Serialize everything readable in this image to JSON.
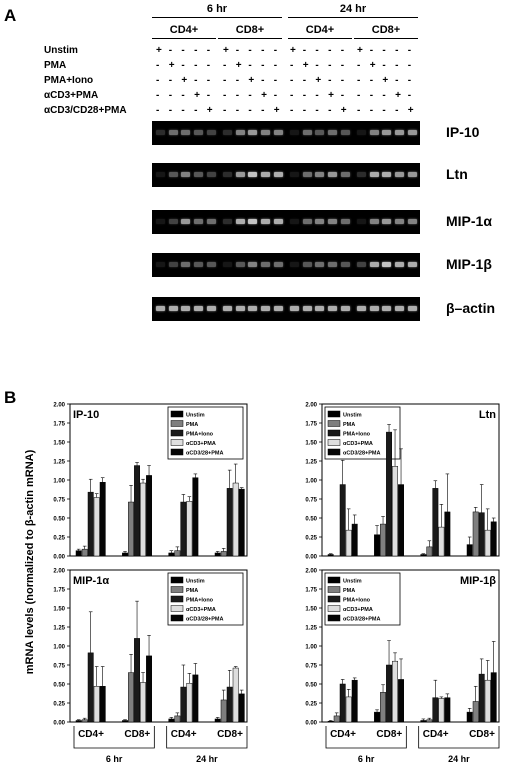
{
  "panel_a": {
    "letter": "A",
    "time_labels": [
      "6 hr",
      "24 hr"
    ],
    "cell_labels": [
      "CD4+",
      "CD8+",
      "CD4+",
      "CD8+"
    ],
    "row_labels": [
      "Unstim",
      "PMA",
      "PMA+Iono",
      "αCD3+PMA",
      "αCD3/CD28+PMA"
    ],
    "gels": [
      {
        "gene": "IP-10",
        "levels": [
          0.2,
          0.5,
          0.5,
          0.4,
          0.3,
          0.2,
          0.6,
          0.7,
          0.6,
          0.6,
          0.1,
          0.5,
          0.4,
          0.5,
          0.4,
          0.1,
          0.6,
          0.7,
          0.7,
          0.7
        ]
      },
      {
        "gene": "Ltn",
        "levels": [
          0.1,
          0.4,
          0.6,
          0.4,
          0.3,
          0.2,
          0.7,
          0.9,
          0.8,
          0.8,
          0.1,
          0.5,
          0.6,
          0.7,
          0.5,
          0.2,
          0.8,
          0.8,
          0.7,
          0.7
        ]
      },
      {
        "gene": "MIP-1α",
        "levels": [
          0.1,
          0.3,
          0.7,
          0.5,
          0.5,
          0.2,
          0.8,
          0.9,
          0.8,
          0.8,
          0.1,
          0.5,
          0.6,
          0.6,
          0.5,
          0.1,
          0.6,
          0.7,
          0.6,
          0.6
        ]
      },
      {
        "gene": "MIP-1β",
        "levels": [
          0.1,
          0.3,
          0.5,
          0.4,
          0.4,
          0.1,
          0.4,
          0.6,
          0.5,
          0.5,
          0.1,
          0.4,
          0.5,
          0.5,
          0.4,
          0.3,
          0.8,
          0.9,
          0.8,
          0.8
        ]
      },
      {
        "gene": "β–actin",
        "levels": [
          0.8,
          0.8,
          0.8,
          0.8,
          0.8,
          0.8,
          0.8,
          0.8,
          0.8,
          0.8,
          0.8,
          0.8,
          0.8,
          0.8,
          0.8,
          0.8,
          0.8,
          0.8,
          0.8,
          0.8
        ]
      }
    ]
  },
  "panel_b": {
    "letter": "B",
    "ylabel": "mRNA levels (normalized to β-actin mRNA)",
    "group_labels": [
      "CD4+",
      "CD8+",
      "CD4+",
      "CD8+"
    ],
    "time_labels": [
      "6 hr",
      "24 hr"
    ]
  },
  "chart_data": [
    {
      "type": "bar",
      "title": "IP-10",
      "categories": [
        "CD4+ 6 hr",
        "CD8+ 6 hr",
        "CD4+ 24 hr",
        "CD8+ 24 hr"
      ],
      "ylim": [
        0,
        2.0
      ],
      "yticks": [
        "0.00",
        "0.25",
        "0.50",
        "0.75",
        "1.00",
        "1.25",
        "1.50",
        "1.75",
        "2.00"
      ],
      "series": [
        {
          "name": "Unstim",
          "values": [
            0.07,
            0.04,
            0.04,
            0.04
          ],
          "errors": [
            0.02,
            0.02,
            0.03,
            0.02
          ]
        },
        {
          "name": "PMA",
          "values": [
            0.09,
            0.71,
            0.07,
            0.06
          ],
          "errors": [
            0.04,
            0.22,
            0.05,
            0.04
          ]
        },
        {
          "name": "PMA+Iono",
          "values": [
            0.84,
            1.19,
            0.71,
            0.89
          ],
          "errors": [
            0.17,
            0.04,
            0.1,
            0.24
          ]
        },
        {
          "name": "αCD3+PMA",
          "values": [
            0.77,
            0.96,
            0.72,
            0.96
          ],
          "errors": [
            0.05,
            0.05,
            0.06,
            0.25
          ]
        },
        {
          "name": "αCD3/28+PMA",
          "values": [
            0.97,
            1.06,
            1.03,
            0.88
          ],
          "errors": [
            0.06,
            0.13,
            0.05,
            0.02
          ]
        }
      ]
    },
    {
      "type": "bar",
      "title": "Ltn",
      "categories": [
        "CD4+ 6 hr",
        "CD8+ 6 hr",
        "CD4+ 24 hr",
        "CD8+ 24 hr"
      ],
      "ylim": [
        0,
        2.0
      ],
      "yticks": [
        "0.00",
        "0.25",
        "0.50",
        "0.75",
        "1.00",
        "1.25",
        "1.50",
        "1.75",
        "2.00"
      ],
      "series": [
        {
          "name": "Unstim",
          "values": [
            0.02,
            0.28,
            0.02,
            0.15
          ],
          "errors": [
            0.01,
            0.12,
            0.01,
            0.1
          ]
        },
        {
          "name": "PMA",
          "values": [
            0.0,
            0.42,
            0.12,
            0.58
          ],
          "errors": [
            0.0,
            0.1,
            0.08,
            0.06
          ]
        },
        {
          "name": "PMA+Iono",
          "values": [
            0.94,
            1.63,
            0.89,
            0.57
          ],
          "errors": [
            0.32,
            0.1,
            0.1,
            0.37
          ]
        },
        {
          "name": "αCD3+PMA",
          "values": [
            0.34,
            1.18,
            0.38,
            0.34
          ],
          "errors": [
            0.28,
            0.48,
            0.3,
            0.28
          ]
        },
        {
          "name": "αCD3/28+PMA",
          "values": [
            0.42,
            0.94,
            0.58,
            0.45
          ],
          "errors": [
            0.12,
            0.47,
            0.5,
            0.05
          ]
        }
      ]
    },
    {
      "type": "bar",
      "title": "MIP-1α",
      "categories": [
        "CD4+ 6 hr",
        "CD8+ 6 hr",
        "CD4+ 24 hr",
        "CD8+ 24 hr"
      ],
      "ylim": [
        0,
        2.0
      ],
      "yticks": [
        "0.00",
        "0.25",
        "0.50",
        "0.75",
        "1.00",
        "1.25",
        "1.50",
        "1.75",
        "2.00"
      ],
      "series": [
        {
          "name": "Unstim",
          "values": [
            0.02,
            0.02,
            0.04,
            0.04
          ],
          "errors": [
            0.01,
            0.01,
            0.02,
            0.02
          ]
        },
        {
          "name": "PMA",
          "values": [
            0.03,
            0.65,
            0.08,
            0.29
          ],
          "errors": [
            0.02,
            0.24,
            0.04,
            0.13
          ]
        },
        {
          "name": "PMA+Iono",
          "values": [
            0.91,
            1.1,
            0.46,
            0.46
          ],
          "errors": [
            0.54,
            0.49,
            0.29,
            0.22
          ]
        },
        {
          "name": "αCD3+PMA",
          "values": [
            0.47,
            0.52,
            0.51,
            0.71
          ],
          "errors": [
            0.26,
            0.13,
            0.13,
            0.02
          ]
        },
        {
          "name": "αCD3/28+PMA",
          "values": [
            0.47,
            0.87,
            0.62,
            0.37
          ],
          "errors": [
            0.26,
            0.27,
            0.15,
            0.05
          ]
        }
      ]
    },
    {
      "type": "bar",
      "title": "MIP-1β",
      "categories": [
        "CD4+ 6 hr",
        "CD8+ 6 hr",
        "CD4+ 24 hr",
        "CD8+ 24 hr"
      ],
      "ylim": [
        0,
        2.0
      ],
      "yticks": [
        "0.00",
        "0.25",
        "0.50",
        "0.75",
        "1.00",
        "1.25",
        "1.50",
        "1.75",
        "2.00"
      ],
      "series": [
        {
          "name": "Unstim",
          "values": [
            0.01,
            0.13,
            0.02,
            0.13
          ],
          "errors": [
            0.01,
            0.03,
            0.02,
            0.05
          ]
        },
        {
          "name": "PMA",
          "values": [
            0.08,
            0.39,
            0.03,
            0.27
          ],
          "errors": [
            0.04,
            0.1,
            0.02,
            0.2
          ]
        },
        {
          "name": "PMA+Iono",
          "values": [
            0.5,
            0.75,
            0.32,
            0.63
          ],
          "errors": [
            0.06,
            0.32,
            0.23,
            0.2
          ]
        },
        {
          "name": "αCD3+PMA",
          "values": [
            0.33,
            0.8,
            0.31,
            0.55
          ],
          "errors": [
            0.1,
            0.11,
            0.02,
            0.26
          ]
        },
        {
          "name": "αCD3/28+PMA",
          "values": [
            0.55,
            0.56,
            0.32,
            0.65
          ],
          "errors": [
            0.03,
            0.27,
            0.05,
            0.41
          ]
        }
      ]
    }
  ],
  "legend_colors": [
    "#000000",
    "#7f7f7f",
    "#1a1a1a",
    "#dedede",
    "#050505"
  ]
}
